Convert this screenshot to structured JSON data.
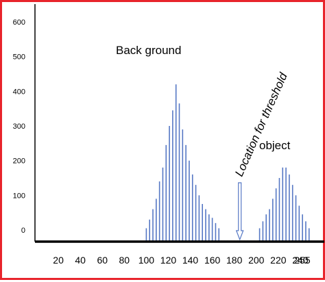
{
  "chart_data": {
    "type": "bar",
    "title": "",
    "xlabel": "",
    "ylabel": "",
    "ylim": [
      0,
      600
    ],
    "xlim": [
      0,
      255
    ],
    "y_ticks": [
      "600",
      "500",
      "400",
      "300",
      "200",
      "100",
      "0"
    ],
    "x_ticks": [
      "20",
      "40",
      "60",
      "80",
      "100",
      "120",
      "140",
      "160",
      "180",
      "200",
      "220",
      "240",
      "255"
    ],
    "grid": false,
    "series": [
      {
        "name": "",
        "x": [
          100,
          103,
          106,
          109,
          112,
          115,
          118,
          121,
          124,
          127,
          130,
          133,
          136,
          139,
          142,
          145,
          148,
          151,
          154,
          157,
          160,
          163,
          166,
          203,
          206,
          209,
          212,
          215,
          218,
          221,
          224,
          227,
          230,
          233,
          236,
          239,
          242,
          245,
          248
        ],
        "values": [
          5,
          30,
          60,
          90,
          140,
          180,
          245,
          300,
          345,
          420,
          365,
          290,
          245,
          200,
          160,
          130,
          100,
          75,
          60,
          45,
          35,
          20,
          5,
          5,
          25,
          45,
          60,
          90,
          120,
          150,
          180,
          180,
          160,
          130,
          100,
          70,
          45,
          25,
          5
        ]
      }
    ],
    "annotations": [
      {
        "text": "Back ground",
        "x": 130,
        "y": 540
      },
      {
        "text": "object",
        "x": 220,
        "y": 245
      },
      {
        "text": "Location for threshold",
        "x": 185,
        "y": 0,
        "arrow": true
      }
    ],
    "colors": {
      "bar": "#5577c4",
      "axis": "#000000",
      "frame": "#e8242c",
      "arrow": "#5577c4"
    }
  }
}
